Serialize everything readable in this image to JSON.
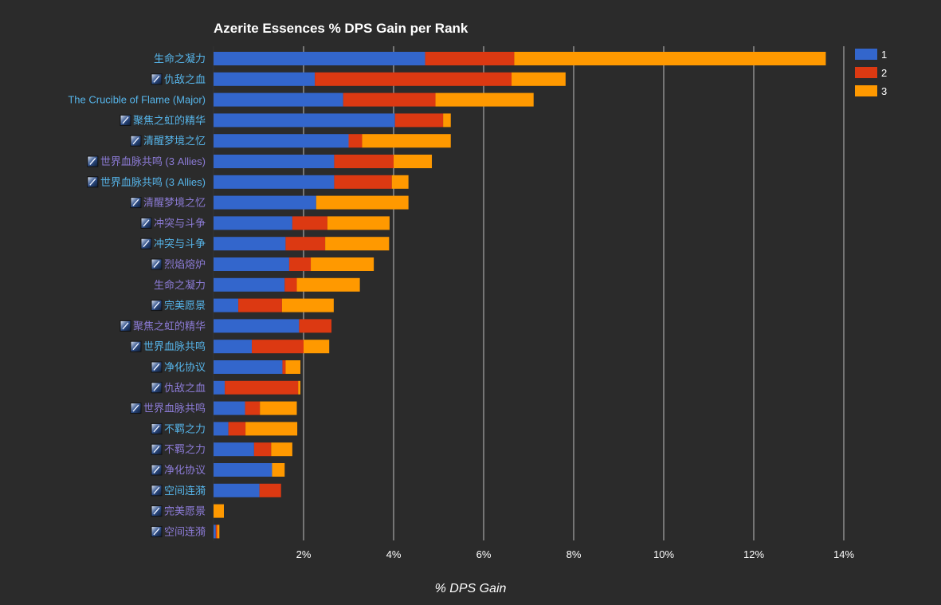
{
  "chart_data": {
    "type": "bar",
    "orientation": "horizontal",
    "stacked": true,
    "title": "Azerite Essences % DPS Gain per Rank",
    "xlabel": "% DPS Gain",
    "ylabel": "",
    "xlim": [
      0,
      14
    ],
    "xticks": [
      2,
      4,
      6,
      8,
      10,
      12,
      14
    ],
    "tick_suffix": "%",
    "grid": true,
    "legend_position": "top-right",
    "categories": [
      {
        "label": "生命之凝力",
        "icon": "",
        "color": "#56b4e9"
      },
      {
        "label": "仇敌之血",
        "icon": "blood-of-the-enemy-icon",
        "color": "#56b4e9"
      },
      {
        "label": "The Crucible of Flame (Major)",
        "icon": "",
        "color": "#56b4e9"
      },
      {
        "label": "聚焦之虹的精华",
        "icon": "focused-azerite-beam-icon",
        "color": "#56b4e9"
      },
      {
        "label": "清醒梦境之忆",
        "icon": "memory-of-lucid-dreams-icon",
        "color": "#56b4e9"
      },
      {
        "label": "世界血脉共鸣 (3 Allies)",
        "icon": "worldvein-resonance-icon",
        "color": "#8c7bd6"
      },
      {
        "label": "世界血脉共鸣 (3 Allies)",
        "icon": "worldvein-resonance-icon",
        "color": "#56b4e9"
      },
      {
        "label": "清醒梦境之忆",
        "icon": "memory-of-lucid-dreams-icon",
        "color": "#8c7bd6"
      },
      {
        "label": "冲突与斗争",
        "icon": "conflict-and-strife-icon",
        "color": "#8c7bd6"
      },
      {
        "label": "冲突与斗争",
        "icon": "conflict-and-strife-icon",
        "color": "#56b4e9"
      },
      {
        "label": "烈焰熔炉",
        "icon": "crucible-of-flame-icon",
        "color": "#8c7bd6"
      },
      {
        "label": "生命之凝力",
        "icon": "",
        "color": "#8c7bd6"
      },
      {
        "label": "完美愿景",
        "icon": "vision-of-perfection-icon",
        "color": "#56b4e9"
      },
      {
        "label": "聚焦之虹的精华",
        "icon": "focused-azerite-beam-icon",
        "color": "#8c7bd6"
      },
      {
        "label": "世界血脉共鸣",
        "icon": "worldvein-resonance-icon",
        "color": "#56b4e9"
      },
      {
        "label": "净化协议",
        "icon": "purification-protocol-icon",
        "color": "#56b4e9"
      },
      {
        "label": "仇敌之血",
        "icon": "blood-of-the-enemy-icon",
        "color": "#8c7bd6"
      },
      {
        "label": "世界血脉共鸣",
        "icon": "worldvein-resonance-icon",
        "color": "#8c7bd6"
      },
      {
        "label": "不羁之力",
        "icon": "unbound-force-icon",
        "color": "#56b4e9"
      },
      {
        "label": "不羁之力",
        "icon": "unbound-force-icon",
        "color": "#8c7bd6"
      },
      {
        "label": "净化协议",
        "icon": "purification-protocol-icon",
        "color": "#8c7bd6"
      },
      {
        "label": "空间连漪",
        "icon": "ripple-in-space-icon",
        "color": "#56b4e9"
      },
      {
        "label": "完美愿景",
        "icon": "vision-of-perfection-icon",
        "color": "#8c7bd6"
      },
      {
        "label": "空间连漪",
        "icon": "ripple-in-space-icon",
        "color": "#8c7bd6"
      }
    ],
    "series": [
      {
        "name": "1",
        "color": "#3366cc",
        "values": [
          4.7,
          2.25,
          2.88,
          4.03,
          3.0,
          2.68,
          2.68,
          2.28,
          1.75,
          1.6,
          1.68,
          1.58,
          0.55,
          1.9,
          0.85,
          1.53,
          0.25,
          0.7,
          0.33,
          0.9,
          1.3,
          1.02,
          0.0,
          0.05
        ]
      },
      {
        "name": "2",
        "color": "#dc3912",
        "values": [
          1.98,
          4.37,
          2.05,
          1.07,
          0.3,
          1.32,
          1.28,
          0.0,
          0.78,
          0.88,
          0.48,
          0.27,
          0.97,
          0.72,
          1.15,
          0.07,
          1.63,
          0.33,
          0.38,
          0.38,
          0.0,
          0.48,
          0.0,
          0.03
        ]
      },
      {
        "name": "3",
        "color": "#ff9900",
        "values": [
          6.92,
          1.2,
          2.18,
          0.17,
          1.97,
          0.85,
          0.37,
          2.05,
          1.38,
          1.42,
          1.4,
          1.4,
          1.15,
          0.0,
          0.57,
          0.33,
          0.05,
          0.82,
          1.15,
          0.47,
          0.28,
          0.0,
          0.23,
          0.05
        ]
      }
    ]
  }
}
